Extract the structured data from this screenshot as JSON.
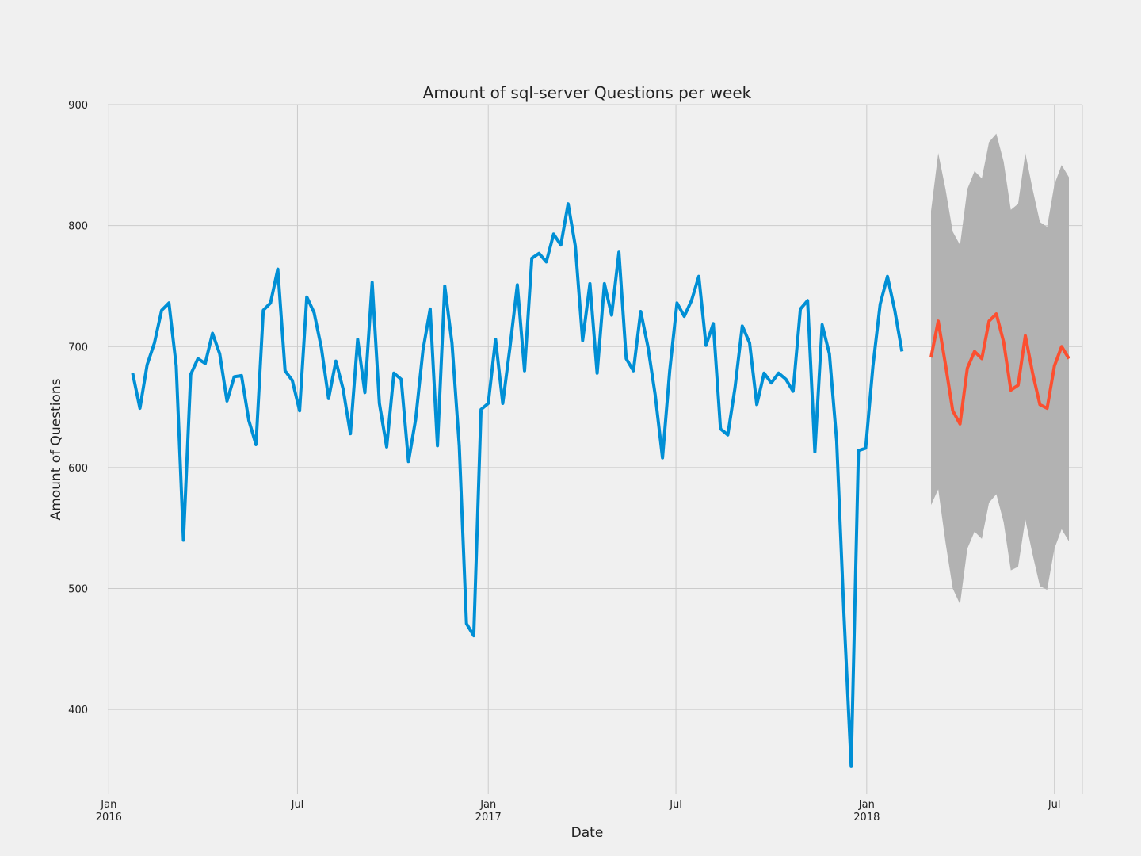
{
  "chart_data": {
    "type": "line",
    "title": "Amount of sql-server Questions per week",
    "xlabel": "Date",
    "ylabel": "Amount of Questions",
    "ylim": [
      330,
      900
    ],
    "xlim": [
      "2015-12-31",
      "2018-07-28"
    ],
    "grid": true,
    "x_ticks": [
      {
        "date": "2016-01-01",
        "line1": "Jan",
        "line2": "2016"
      },
      {
        "date": "2016-07-01",
        "line1": "Jul",
        "line2": ""
      },
      {
        "date": "2017-01-01",
        "line1": "Jan",
        "line2": "2017"
      },
      {
        "date": "2017-07-01",
        "line1": "Jul",
        "line2": ""
      },
      {
        "date": "2018-01-01",
        "line1": "Jan",
        "line2": "2018"
      },
      {
        "date": "2018-07-01",
        "line1": "Jul",
        "line2": ""
      }
    ],
    "y_ticks": [
      400,
      500,
      600,
      700,
      800,
      900
    ],
    "colors": {
      "observed": "#008fd5",
      "forecast": "#fc4f30",
      "confidence": "#b2b2b2"
    },
    "observed": {
      "start_date": "2016-01-24",
      "step_days": 7,
      "values": [
        678,
        649,
        685,
        703,
        730,
        736,
        684,
        540,
        677,
        690,
        686,
        711,
        694,
        655,
        675,
        676,
        639,
        619,
        730,
        736,
        764,
        680,
        672,
        647,
        741,
        728,
        699,
        657,
        688,
        665,
        628,
        706,
        662,
        753,
        653,
        617,
        678,
        673,
        605,
        640,
        697,
        731,
        618,
        750,
        703,
        618,
        471,
        461,
        648,
        653,
        706,
        653,
        700,
        751,
        680,
        773,
        777,
        770,
        793,
        784,
        818,
        783,
        705,
        752,
        678,
        752,
        726,
        778,
        690,
        680,
        729,
        700,
        660,
        608,
        680,
        736,
        725,
        738,
        758,
        701,
        719,
        632,
        627,
        666,
        717,
        703,
        652,
        678,
        670,
        678,
        673,
        663,
        731,
        738,
        613,
        718,
        694,
        622,
        480,
        353,
        614,
        616,
        684,
        735,
        758,
        730,
        696
      ]
    },
    "forecast": {
      "start_date": "2018-03-04",
      "step_days": 7,
      "values": [
        691,
        721,
        685,
        647,
        636,
        682,
        696,
        690,
        721,
        727,
        704,
        664,
        668,
        709,
        678,
        652,
        649,
        684,
        700,
        690
      ],
      "lower": [
        569,
        582,
        538,
        500,
        487,
        533,
        547,
        541,
        571,
        578,
        555,
        515,
        518,
        557,
        528,
        502,
        499,
        533,
        549,
        539
      ],
      "upper": [
        812,
        860,
        830,
        795,
        784,
        830,
        845,
        839,
        869,
        876,
        853,
        813,
        818,
        860,
        830,
        803,
        799,
        834,
        850,
        840
      ]
    }
  }
}
